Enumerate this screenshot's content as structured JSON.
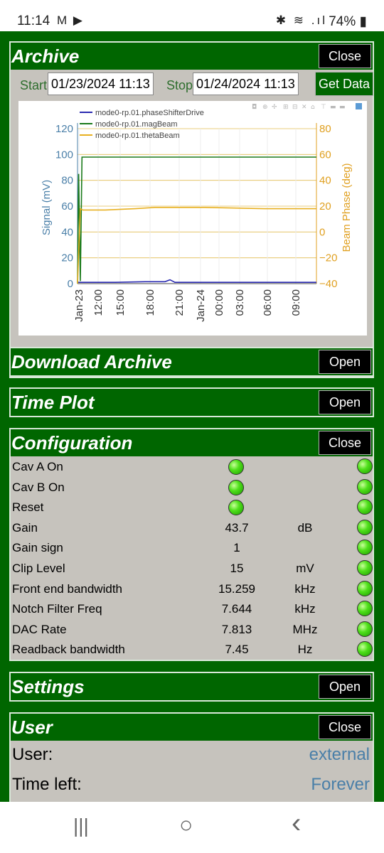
{
  "status_bar": {
    "time": "11:14",
    "left_icons": "M ▶",
    "right_icons": "✱ ≋ .ıl",
    "battery": "74%"
  },
  "archive": {
    "title": "Archive",
    "close_label": "Close",
    "start_label": "Start",
    "start_value": "01/23/2024 11:13",
    "stop_label": "Stop",
    "stop_value": "01/24/2024 11:13",
    "get_data_label": "Get Data"
  },
  "chart_data": {
    "type": "line",
    "title": "",
    "ylabel": "Signal (mV)",
    "y2label": "Beam Phase (deg)",
    "ylim": [
      0,
      120
    ],
    "y2lim": [
      -40,
      80
    ],
    "yticks": [
      "0",
      "20",
      "40",
      "60",
      "80",
      "100",
      "120"
    ],
    "y2ticks": [
      "−40",
      "−20",
      "0",
      "20",
      "40",
      "60",
      "80"
    ],
    "xticks": [
      "Jan-23",
      "12:00",
      "15:00",
      "18:00",
      "21:00",
      "Jan-24",
      "00:00",
      "03:00",
      "06:00",
      "09:00"
    ],
    "xlim": [
      "2024-01-23 11:13",
      "2024-01-24 11:13"
    ],
    "legend_position": "top-left",
    "grid": true,
    "series": [
      {
        "name": "mode0-rp.01.phaseShifterDrive",
        "color": "#2a2ab0",
        "axis": "left",
        "x": [
          "2024-01-23 11:13",
          "2024-01-23 11:40",
          "2024-01-23 15:00",
          "2024-01-23 18:00",
          "2024-01-23 20:00",
          "2024-01-23 20:30",
          "2024-01-23 21:00",
          "2024-01-24 00:00",
          "2024-01-24 06:00",
          "2024-01-24 11:13"
        ],
        "values": [
          1,
          1,
          1,
          1.5,
          1.5,
          3,
          1,
          1,
          1,
          1
        ]
      },
      {
        "name": "mode0-rp.01.magBeam",
        "color": "#1a7a1a",
        "axis": "left",
        "x": [
          "2024-01-23 11:13",
          "2024-01-23 11:20",
          "2024-01-23 11:30",
          "2024-01-23 11:40",
          "2024-01-23 15:00",
          "2024-01-23 18:00",
          "2024-01-23 21:00",
          "2024-01-24 00:00",
          "2024-01-24 06:00",
          "2024-01-24 11:13"
        ],
        "values": [
          0,
          85,
          2,
          98,
          98,
          98,
          98,
          98,
          98,
          98
        ]
      },
      {
        "name": "mode0-rp.01.thetaBeam",
        "color": "#e8b020",
        "axis": "right",
        "x": [
          "2024-01-23 11:13",
          "2024-01-23 11:30",
          "2024-01-23 11:45",
          "2024-01-23 14:00",
          "2024-01-23 17:00",
          "2024-01-23 19:00",
          "2024-01-24 00:00",
          "2024-01-24 06:00",
          "2024-01-24 11:13"
        ],
        "values": [
          -40,
          18,
          17,
          17,
          18,
          19,
          19,
          18,
          18
        ]
      }
    ]
  },
  "download_archive": {
    "title": "Download Archive",
    "open_label": "Open"
  },
  "time_plot": {
    "title": "Time Plot",
    "open_label": "Open"
  },
  "configuration": {
    "title": "Configuration",
    "close_label": "Close",
    "rows": [
      {
        "label": "Cav A On",
        "value": "",
        "unit": "",
        "led": true
      },
      {
        "label": "Cav B On",
        "value": "",
        "unit": "",
        "led": true
      },
      {
        "label": "Reset",
        "value": "",
        "unit": "",
        "led": true
      },
      {
        "label": "Gain",
        "value": "43.7",
        "unit": "dB",
        "led": false
      },
      {
        "label": "Gain sign",
        "value": "1",
        "unit": "",
        "led": false
      },
      {
        "label": "Clip Level",
        "value": "15",
        "unit": "mV",
        "led": false
      },
      {
        "label": "Front end bandwidth",
        "value": "15.259",
        "unit": "kHz",
        "led": false
      },
      {
        "label": "Notch Filter Freq",
        "value": "7.644",
        "unit": "kHz",
        "led": false
      },
      {
        "label": "DAC Rate",
        "value": "7.813",
        "unit": "MHz",
        "led": false
      },
      {
        "label": "Readback bandwidth",
        "value": "7.45",
        "unit": "Hz",
        "led": false
      }
    ]
  },
  "settings": {
    "title": "Settings",
    "open_label": "Open"
  },
  "user": {
    "title": "User",
    "close_label": "Close",
    "user_label": "User:",
    "user_value": "external",
    "time_left_label": "Time left:",
    "time_left_value": "Forever"
  },
  "nav": {
    "recents": "|||",
    "home": "○",
    "back": "‹"
  }
}
